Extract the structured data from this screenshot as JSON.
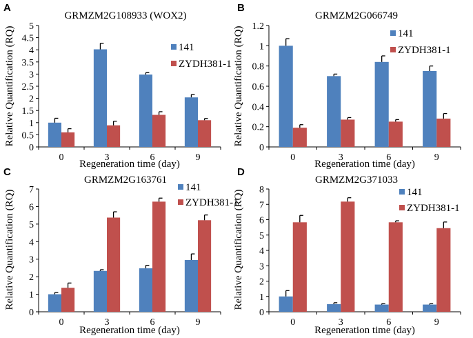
{
  "colors": {
    "series_141": "#4f81bd",
    "series_zydh": "#c0504d",
    "axis": "#000000",
    "errorbar": "#000000"
  },
  "chart_data": [
    {
      "panel": "A",
      "type": "bar",
      "title": "GRMZM2G108933 (WOX2)",
      "xlabel": "Regeneration time (day)",
      "ylabel": "Relative Quantification (RQ)",
      "categories": [
        "0",
        "3",
        "6",
        "9"
      ],
      "ylim": [
        0,
        5
      ],
      "yticks": [
        "0",
        "0.5",
        "1",
        "1.5",
        "2",
        "2.5",
        "3",
        "3.5",
        "4",
        "4.5",
        "5"
      ],
      "legend_position": "middle-right",
      "series": [
        {
          "name": "141",
          "values": [
            1.0,
            4.02,
            2.98,
            2.04
          ],
          "errors": [
            0.18,
            0.25,
            0.08,
            0.12
          ]
        },
        {
          "name": "ZYDH381-1",
          "values": [
            0.6,
            0.89,
            1.32,
            1.1
          ],
          "errors": [
            0.15,
            0.17,
            0.13,
            0.07
          ]
        }
      ]
    },
    {
      "panel": "B",
      "type": "bar",
      "title": "GRMZM2G066749",
      "xlabel": "Regeneration time (day)",
      "ylabel": "Relative Quantification (RQ)",
      "categories": [
        "0",
        "3",
        "6",
        "9"
      ],
      "ylim": [
        0,
        1.2
      ],
      "yticks": [
        "0",
        "0.2",
        "0.4",
        "0.6",
        "0.8",
        "1",
        "1.2"
      ],
      "legend_position": "top-right",
      "series": [
        {
          "name": "141",
          "values": [
            1.0,
            0.7,
            0.84,
            0.75
          ],
          "errors": [
            0.07,
            0.02,
            0.06,
            0.05
          ]
        },
        {
          "name": "ZYDH381-1",
          "values": [
            0.19,
            0.27,
            0.25,
            0.28
          ],
          "errors": [
            0.03,
            0.02,
            0.02,
            0.05
          ]
        }
      ]
    },
    {
      "panel": "C",
      "type": "bar",
      "title": "GRMZM2G163761",
      "xlabel": "Regeneration time (day)",
      "ylabel": "Relative Quantification (RQ)",
      "categories": [
        "0",
        "3",
        "6",
        "9"
      ],
      "ylim": [
        0,
        7
      ],
      "yticks": [
        "0",
        "1",
        "2",
        "3",
        "4",
        "5",
        "6",
        "7"
      ],
      "legend_position": "top-right",
      "series": [
        {
          "name": "141",
          "values": [
            1.0,
            2.33,
            2.48,
            2.95
          ],
          "errors": [
            0.1,
            0.07,
            0.17,
            0.35
          ]
        },
        {
          "name": "ZYDH381-1",
          "values": [
            1.37,
            5.37,
            6.28,
            5.22
          ],
          "errors": [
            0.27,
            0.33,
            0.2,
            0.3
          ]
        }
      ]
    },
    {
      "panel": "D",
      "type": "bar",
      "title": "GRMZM2G371033",
      "xlabel": "Regeneration time (day)",
      "ylabel": "Relative Quantification (RQ)",
      "categories": [
        "0",
        "3",
        "6",
        "9"
      ],
      "ylim": [
        0,
        8
      ],
      "yticks": [
        "0",
        "1",
        "2",
        "3",
        "4",
        "5",
        "6",
        "7",
        "8"
      ],
      "legend_position": "top-right",
      "series": [
        {
          "name": "141",
          "values": [
            1.0,
            0.5,
            0.47,
            0.47
          ],
          "errors": [
            0.38,
            0.09,
            0.06,
            0.06
          ]
        },
        {
          "name": "ZYDH381-1",
          "values": [
            5.83,
            7.18,
            5.83,
            5.45
          ],
          "errors": [
            0.45,
            0.25,
            0.1,
            0.4
          ]
        }
      ]
    }
  ]
}
